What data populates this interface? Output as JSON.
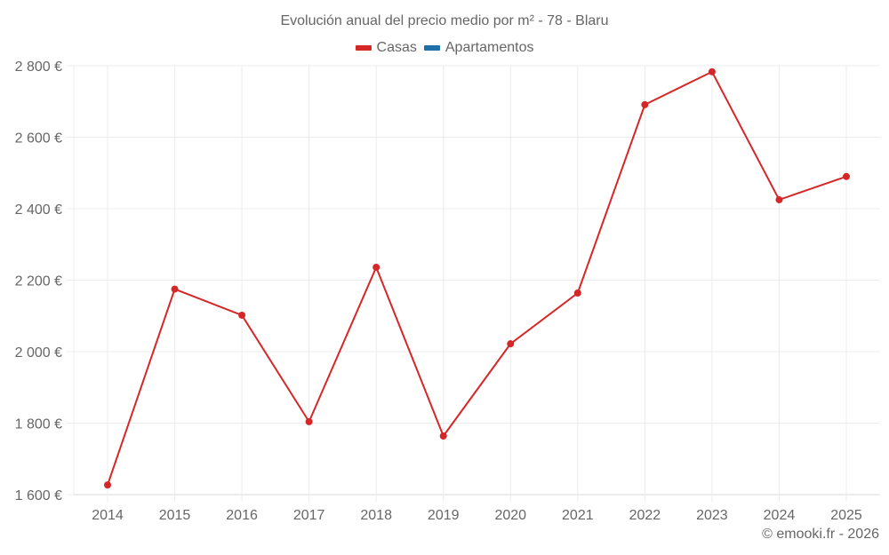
{
  "chart_data": {
    "type": "line",
    "title": "Evolución anual del precio medio por m² - 78 - Blaru",
    "xlabel": "",
    "ylabel": "",
    "categories": [
      "2014",
      "2015",
      "2016",
      "2017",
      "2018",
      "2019",
      "2020",
      "2021",
      "2022",
      "2023",
      "2024",
      "2025"
    ],
    "series": [
      {
        "name": "Casas",
        "color": "#d62728",
        "values": [
          1627,
          2175,
          2102,
          1804,
          2236,
          1764,
          2022,
          2164,
          2691,
          2783,
          2425,
          2490
        ]
      },
      {
        "name": "Apartamentos",
        "color": "#1f6fa8",
        "values": []
      }
    ],
    "ylim": [
      1600,
      2800
    ],
    "yticks": [
      1600,
      1800,
      2000,
      2200,
      2400,
      2600,
      2800
    ],
    "ytick_labels": [
      "1 600 €",
      "1 800 €",
      "2 000 €",
      "2 200 €",
      "2 400 €",
      "2 600 €",
      "2 800 €"
    ],
    "grid": true,
    "legend_position": "top"
  },
  "header": {
    "title": "Evolución anual del precio medio por m² - 78 - Blaru"
  },
  "legend": {
    "items": [
      {
        "label": "Casas",
        "color": "#d62728"
      },
      {
        "label": "Apartamentos",
        "color": "#1f6fa8"
      }
    ]
  },
  "footer": {
    "credit": "© emooki.fr - 2026"
  }
}
